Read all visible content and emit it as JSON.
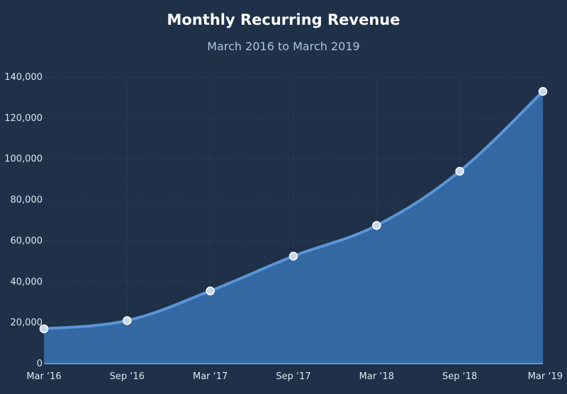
{
  "chart_data": {
    "type": "area",
    "title": "Monthly Recurring Revenue",
    "subtitle": "March 2016 to March 2019",
    "xlabel": "",
    "ylabel": "",
    "categories": [
      "Mar ‘16",
      "Sep ‘16",
      "Mar ‘17",
      "Sep ‘17",
      "Mar ‘18",
      "Sep ‘18",
      "Mar ‘19"
    ],
    "values": [
      17000,
      21000,
      35500,
      52500,
      67500,
      94000,
      133000
    ],
    "ylim": [
      0,
      140000
    ],
    "yticks": [
      0,
      20000,
      40000,
      60000,
      80000,
      100000,
      120000,
      140000
    ],
    "ytick_labels": [
      "0",
      "20,000",
      "40,000",
      "60,000",
      "80,000",
      "100,000",
      "120,000",
      "140,000"
    ],
    "grid": "dotted",
    "legend": "none",
    "colors": {
      "background": "#1e3148",
      "fill": "#3468a3",
      "line": "#5a95d8",
      "marker_fill": "#c7d9ef",
      "marker_stroke": "#ffffff",
      "grid": "#3a4f69"
    }
  }
}
